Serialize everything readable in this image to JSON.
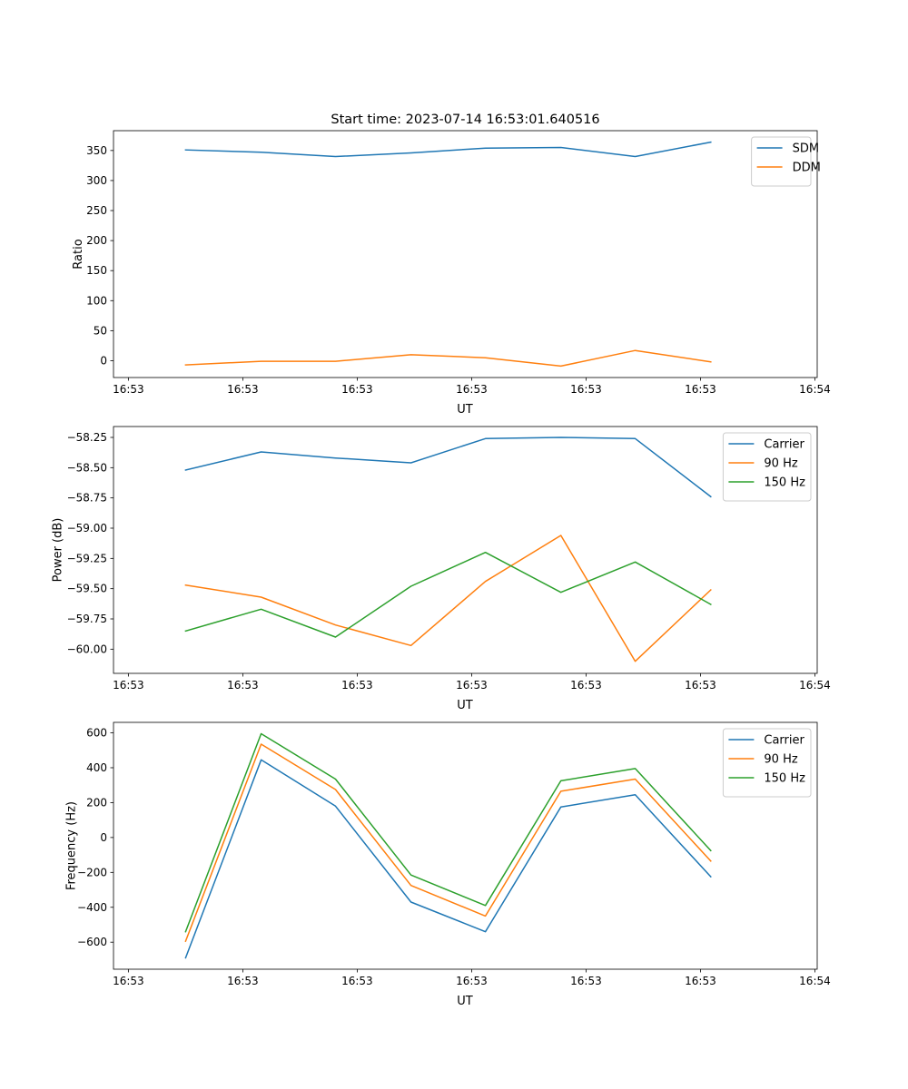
{
  "figure": {
    "title": "Start time: 2023-07-14 16:53:01.640516"
  },
  "colors": {
    "blue": "#1f77b4",
    "orange": "#ff7f0e",
    "green": "#2ca02c",
    "axis": "#000000",
    "legend_border": "#cccccc"
  },
  "chart_data": [
    {
      "type": "line",
      "ylabel": "Ratio",
      "xlabel": "UT",
      "x_tick_labels": [
        "16:53",
        "16:53",
        "16:53",
        "16:53",
        "16:53",
        "16:53",
        "16:54"
      ],
      "x_ticks": [
        0,
        1,
        2,
        3,
        4,
        5,
        6
      ],
      "xlim": [
        -0.13,
        6.02
      ],
      "x": [
        0.5,
        1.16,
        1.81,
        2.47,
        3.12,
        3.78,
        4.43,
        5.09
      ],
      "ylim": [
        -28,
        383
      ],
      "y_ticks": [
        0,
        50,
        100,
        150,
        200,
        250,
        300,
        350
      ],
      "y_tick_labels": [
        "0",
        "50",
        "100",
        "150",
        "200",
        "250",
        "300",
        "350"
      ],
      "legend_position": "top-right",
      "series": [
        {
          "name": "SDM",
          "color": "#1f77b4",
          "values": [
            351,
            347,
            340,
            346,
            354,
            355,
            340,
            364
          ]
        },
        {
          "name": "DDM",
          "color": "#ff7f0e",
          "values": [
            -7,
            -1,
            -1,
            10,
            5,
            -9,
            17,
            -2
          ]
        }
      ]
    },
    {
      "type": "line",
      "ylabel": "Power (dB)",
      "xlabel": "UT",
      "x_tick_labels": [
        "16:53",
        "16:53",
        "16:53",
        "16:53",
        "16:53",
        "16:53",
        "16:54"
      ],
      "x_ticks": [
        0,
        1,
        2,
        3,
        4,
        5,
        6
      ],
      "xlim": [
        -0.13,
        6.02
      ],
      "x": [
        0.5,
        1.16,
        1.81,
        2.47,
        3.12,
        3.78,
        4.43,
        5.09
      ],
      "ylim": [
        -60.2,
        -58.16
      ],
      "y_ticks": [
        -60.0,
        -59.75,
        -59.5,
        -59.25,
        -59.0,
        -58.75,
        -58.5,
        -58.25
      ],
      "y_tick_labels": [
        "−60.00",
        "−59.75",
        "−59.50",
        "−59.25",
        "−59.00",
        "−58.75",
        "−58.50",
        "−58.25"
      ],
      "legend_position": "top-right",
      "series": [
        {
          "name": "Carrier",
          "color": "#1f77b4",
          "values": [
            -58.52,
            -58.37,
            -58.42,
            -58.46,
            -58.26,
            -58.25,
            -58.26,
            -58.74
          ]
        },
        {
          "name": "90 Hz",
          "color": "#ff7f0e",
          "values": [
            -59.47,
            -59.57,
            -59.8,
            -59.97,
            -59.44,
            -59.06,
            -60.1,
            -59.51
          ]
        },
        {
          "name": "150 Hz",
          "color": "#2ca02c",
          "values": [
            -59.85,
            -59.67,
            -59.9,
            -59.48,
            -59.2,
            -59.53,
            -59.28,
            -59.63
          ]
        }
      ]
    },
    {
      "type": "line",
      "ylabel": "Frequency (Hz)",
      "xlabel": "UT",
      "x_tick_labels": [
        "16:53",
        "16:53",
        "16:53",
        "16:53",
        "16:53",
        "16:53",
        "16:54"
      ],
      "x_ticks": [
        0,
        1,
        2,
        3,
        4,
        5,
        6
      ],
      "xlim": [
        -0.13,
        6.02
      ],
      "x": [
        0.5,
        1.16,
        1.81,
        2.47,
        3.12,
        3.78,
        4.43,
        5.09
      ],
      "ylim": [
        -755,
        660
      ],
      "y_ticks": [
        -600,
        -400,
        -200,
        0,
        200,
        400,
        600
      ],
      "y_tick_labels": [
        "−600",
        "−400",
        "−200",
        "0",
        "200",
        "400",
        "600"
      ],
      "legend_position": "top-right",
      "series": [
        {
          "name": "Carrier",
          "color": "#1f77b4",
          "values": [
            -690,
            445,
            180,
            -370,
            -540,
            175,
            245,
            -225
          ]
        },
        {
          "name": "90 Hz",
          "color": "#ff7f0e",
          "values": [
            -595,
            535,
            275,
            -275,
            -450,
            265,
            335,
            -135
          ]
        },
        {
          "name": "150 Hz",
          "color": "#2ca02c",
          "values": [
            -540,
            595,
            335,
            -215,
            -390,
            325,
            395,
            -75
          ]
        }
      ]
    }
  ]
}
